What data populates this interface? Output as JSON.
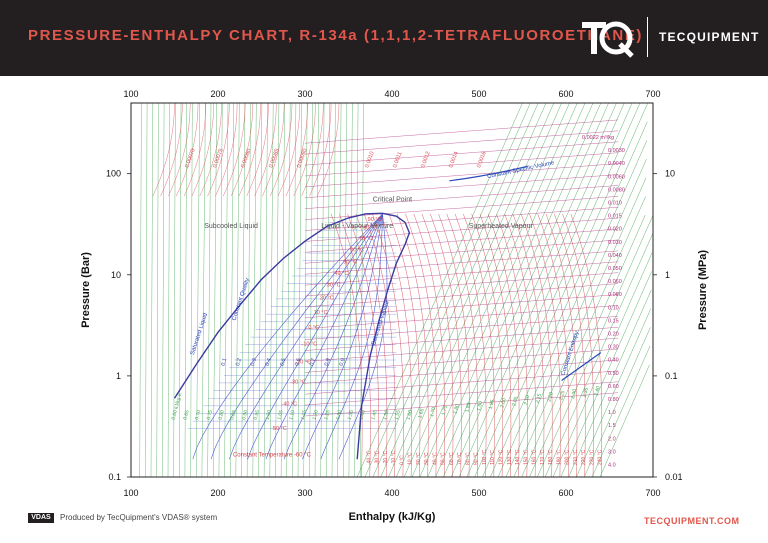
{
  "header": {
    "title": "PRESSURE-ENTHALPY CHART, R-134a (1,1,1,2-TETRAFLUOROETHANE)",
    "brand": "TECQUIPMENT",
    "logo_icon": "tq-logo-icon",
    "background": "#231f20",
    "accent": "#e2574c"
  },
  "footer": {
    "badge": "VDAS",
    "text": "Produced by TecQuipment's VDAS® system",
    "url": "TECQUIPMENT.COM"
  },
  "chart_data": {
    "type": "line",
    "xlabel": "Enthalpy (kJ/Kg)",
    "ylabel_left": "Pressure (Bar)",
    "ylabel_right": "Pressure (MPa)",
    "xlim": [
      100,
      700
    ],
    "ylim": [
      0.1,
      500
    ],
    "y_scale": "log",
    "grid": true,
    "x_ticks": [
      "100",
      "200",
      "300",
      "400",
      "500",
      "600",
      "700"
    ],
    "y_ticks_left": [
      {
        "v": 0.1,
        "label": "0.1"
      },
      {
        "v": 1,
        "label": "1"
      },
      {
        "v": 10,
        "label": "10"
      },
      {
        "v": 100,
        "label": "100"
      }
    ],
    "y_ticks_right": [
      {
        "v": 0.1,
        "label": "0.01"
      },
      {
        "v": 1,
        "label": "0.1"
      },
      {
        "v": 10,
        "label": "1"
      },
      {
        "v": 100,
        "label": "10"
      }
    ],
    "regions": [
      {
        "label": "Subcooled Liquid",
        "x": 215,
        "y": 29
      },
      {
        "label": "Liquid - Vapour Mixture",
        "x": 360,
        "y": 29
      },
      {
        "label": "Superheated Vapour",
        "x": 525,
        "y": 29
      }
    ],
    "critical_point": {
      "label": "Critical Point",
      "x": 389,
      "y": 40.6
    },
    "series": [
      {
        "name": "Saturated Liquid",
        "color": "#3a3aa0",
        "points": [
          [
            150,
            0.6
          ],
          [
            175,
            1.3
          ],
          [
            200,
            2.7
          ],
          [
            225,
            5
          ],
          [
            250,
            9
          ],
          [
            275,
            14.5
          ],
          [
            300,
            21.5
          ],
          [
            325,
            30
          ],
          [
            350,
            36.5
          ],
          [
            370,
            40.1
          ],
          [
            389,
            40.6
          ]
        ]
      },
      {
        "name": "Saturated Vapour",
        "color": "#3a3aa0",
        "points": [
          [
            389,
            40.6
          ],
          [
            405,
            38
          ],
          [
            415,
            33
          ],
          [
            420,
            26
          ],
          [
            415,
            20
          ],
          [
            405,
            13
          ],
          [
            395,
            7
          ],
          [
            385,
            3.5
          ],
          [
            375,
            1.6
          ],
          [
            365,
            0.5
          ],
          [
            360,
            0.15
          ]
        ]
      }
    ],
    "isotherm_labels": [
      "-40 °C",
      "-30 °C",
      "-20 °C",
      "-10 °C",
      "0 °C",
      "10 °C",
      "20 °C",
      "30 °C",
      "40 °C",
      "50 °C",
      "60 °C",
      "70 °C",
      "80 °C",
      "90 °C",
      "100 °C",
      "110 °C",
      "120 °C",
      "130 °C",
      "140 °C",
      "150 °C",
      "160 °C",
      "170 °C",
      "180 °C",
      "190 °C",
      "200 °C",
      "210 °C",
      "220 °C",
      "230 °C",
      "240 °C"
    ],
    "dome_temperature_labels": [
      {
        "label": "90 °C",
        "x": 380,
        "y": 34
      },
      {
        "label": "80 °C",
        "x": 375,
        "y": 28
      },
      {
        "label": "70 °C",
        "x": 370,
        "y": 22
      },
      {
        "label": "60 °C",
        "x": 360,
        "y": 17
      },
      {
        "label": "50 °C",
        "x": 352,
        "y": 13
      },
      {
        "label": "40 °C",
        "x": 342,
        "y": 10
      },
      {
        "label": "30 °C",
        "x": 333,
        "y": 7.7
      },
      {
        "label": "20 °C",
        "x": 325,
        "y": 5.7
      },
      {
        "label": "10 °C",
        "x": 318,
        "y": 4.1
      },
      {
        "label": "0 °C",
        "x": 310,
        "y": 2.9
      },
      {
        "label": "-10 °C",
        "x": 305,
        "y": 2.0
      },
      {
        "label": "-20 °C",
        "x": 298,
        "y": 1.33
      },
      {
        "label": "-30 °C",
        "x": 292,
        "y": 0.84
      },
      {
        "label": "-40 °C",
        "x": 282,
        "y": 0.51
      },
      {
        "label": "-50 °C",
        "x": 270,
        "y": 0.29
      }
    ],
    "constant_temperature_label": {
      "label": "Constant Temperature -60 °C",
      "x": 262,
      "y": 0.16
    },
    "quality_labels": [
      "0.1",
      "0.2",
      "0.3",
      "0.4",
      "0.5",
      "0.6",
      "0.7",
      "0.8",
      "0.9"
    ],
    "volume_labels": [
      "0.0022 m³/kg",
      "0.0030",
      "0.0040",
      "0.0060",
      "0.0080",
      "0.010",
      "0.015",
      "0.020",
      "0.030",
      "0.040",
      "0.050",
      "0.060",
      "0.080",
      "0.10",
      "0.15",
      "0.20",
      "0.30",
      "0.40",
      "0.50",
      "0.60",
      "0.80",
      "1.0",
      "1.5",
      "2.0",
      "3.0",
      "4.0"
    ],
    "entropy_labels": [
      "0.60 kJ/kg·K",
      "0.65",
      "0.70",
      "0.75",
      "0.80",
      "0.85",
      "0.90",
      "0.95",
      "1.00",
      "1.05",
      "1.10",
      "1.15",
      "1.20",
      "1.25",
      "1.30",
      "1.35",
      "1.40",
      "1.45",
      "1.50",
      "1.55",
      "1.60",
      "1.65",
      "1.70",
      "1.75",
      "1.80",
      "1.85",
      "1.90",
      "1.95",
      "2.00",
      "2.05",
      "2.10",
      "2.15",
      "2.20",
      "2.25",
      "2.30",
      "2.35",
      "2.40"
    ],
    "top_volume_labels": [
      "0.00070",
      "0.00075",
      "0.00080",
      "0.00085",
      "0.00090",
      "0.0010",
      "0.0011",
      "0.0012",
      "0.0014",
      "0.0016"
    ],
    "annotations": [
      {
        "label": "Constant Specific Volume",
        "x": 510,
        "y": 90
      },
      {
        "label": "Constant Quality",
        "x": 220,
        "y": 3.5
      },
      {
        "label": "Saturated Liquid",
        "x": 172,
        "y": 1.6
      },
      {
        "label": "Saturated Vapour",
        "x": 380,
        "y": 2.0
      },
      {
        "label": "Constant Entropy",
        "x": 598,
        "y": 1.0
      }
    ]
  }
}
